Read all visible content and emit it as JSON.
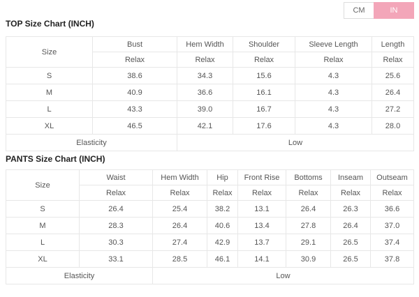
{
  "unit_toggle": {
    "options": [
      {
        "label": "CM",
        "active": false
      },
      {
        "label": "IN",
        "active": true
      }
    ]
  },
  "colors": {
    "accent_pink": "#F3A6B9",
    "table_border": "#E7E7E7",
    "cell_text": "#555555",
    "title_text": "#222222"
  },
  "top_chart": {
    "title": "TOP Size Chart (INCH)",
    "size_header": "Size",
    "columns": [
      {
        "label": "Bust",
        "fit": "Relax"
      },
      {
        "label": "Hem Width",
        "fit": "Relax"
      },
      {
        "label": "Shoulder",
        "fit": "Relax"
      },
      {
        "label": "Sleeve Length",
        "fit": "Relax"
      },
      {
        "label": "Length",
        "fit": "Relax"
      }
    ],
    "rows": [
      {
        "size": "S",
        "values": [
          "38.6",
          "34.3",
          "15.6",
          "4.3",
          "25.6"
        ]
      },
      {
        "size": "M",
        "values": [
          "40.9",
          "36.6",
          "16.1",
          "4.3",
          "26.4"
        ]
      },
      {
        "size": "L",
        "values": [
          "43.3",
          "39.0",
          "16.7",
          "4.3",
          "27.2"
        ]
      },
      {
        "size": "XL",
        "values": [
          "46.5",
          "42.1",
          "17.6",
          "4.3",
          "28.0"
        ]
      }
    ],
    "footer": {
      "label": "Elasticity",
      "value": "Low"
    }
  },
  "pants_chart": {
    "title": "PANTS Size Chart (INCH)",
    "size_header": "Size",
    "columns": [
      {
        "label": "Waist",
        "fit": "Relax"
      },
      {
        "label": "Hem Width",
        "fit": "Relax"
      },
      {
        "label": "Hip",
        "fit": "Relax"
      },
      {
        "label": "Front Rise",
        "fit": "Relax"
      },
      {
        "label": "Bottoms",
        "fit": "Relax"
      },
      {
        "label": "Inseam",
        "fit": "Relax"
      },
      {
        "label": "Outseam",
        "fit": "Relax"
      }
    ],
    "rows": [
      {
        "size": "S",
        "values": [
          "26.4",
          "25.4",
          "38.2",
          "13.1",
          "26.4",
          "26.3",
          "36.6"
        ]
      },
      {
        "size": "M",
        "values": [
          "28.3",
          "26.4",
          "40.6",
          "13.4",
          "27.8",
          "26.4",
          "37.0"
        ]
      },
      {
        "size": "L",
        "values": [
          "30.3",
          "27.4",
          "42.9",
          "13.7",
          "29.1",
          "26.5",
          "37.4"
        ]
      },
      {
        "size": "XL",
        "values": [
          "33.1",
          "28.5",
          "46.1",
          "14.1",
          "30.9",
          "26.5",
          "37.8"
        ]
      }
    ],
    "footer": {
      "label": "Elasticity",
      "value": "Low"
    }
  }
}
